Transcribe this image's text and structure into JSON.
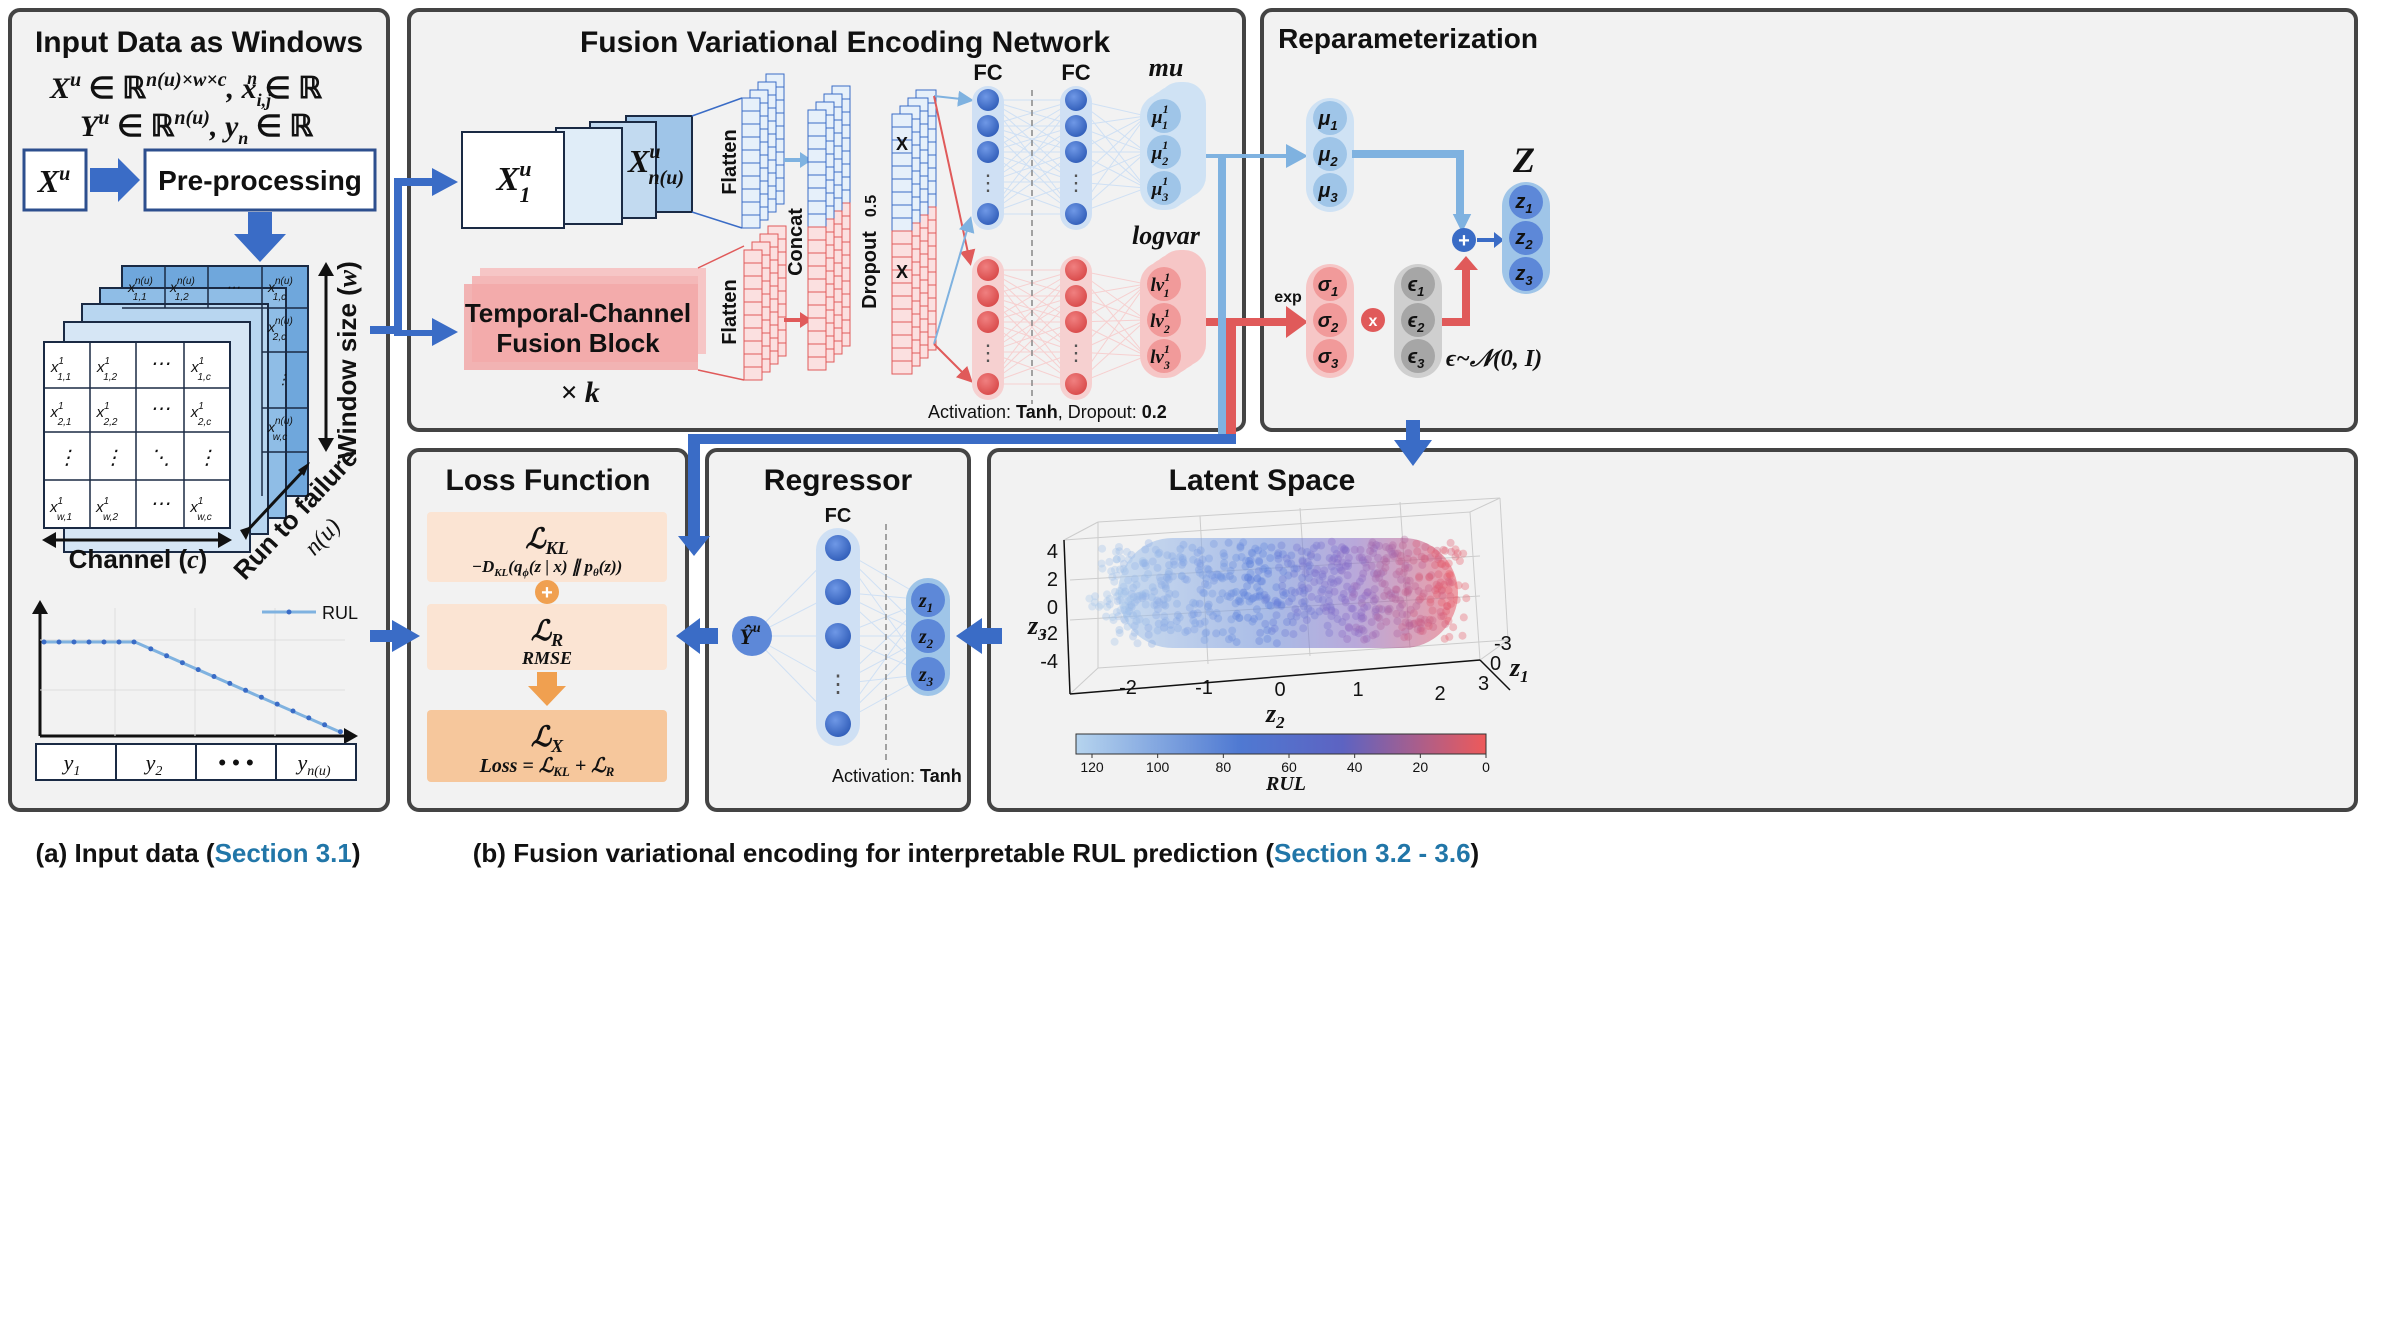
{
  "panels": {
    "input": {
      "title": "Input Data as Windows"
    },
    "fven": {
      "title": "Fusion Variational Encoding Network"
    },
    "reparam": {
      "title": "Reparameterization"
    },
    "loss": {
      "title": "Loss Function"
    },
    "regressor": {
      "title": "Regressor"
    },
    "latent": {
      "title": "Latent Space"
    }
  },
  "input": {
    "formula1_a": "X",
    "formula1_b": "u",
    "formula1_c": " ∈ ℝ",
    "formula1_d": "n(u)×w×c",
    "formula1_e": ", x",
    "formula1_f": "i,j",
    "formula1_g": "n",
    "formula1_h": " ∈ ℝ",
    "formula2_a": "Y",
    "formula2_b": "u",
    "formula2_c": " ∈ ℝ",
    "formula2_d": "n(u)",
    "formula2_e": ", y",
    "formula2_f": "n",
    "formula2_g": " ∈ ℝ",
    "xu_base": "X",
    "xu_sup": "u",
    "preprocessing": "Pre-processing",
    "window_size_label": "Window size (",
    "window_size_var": "w",
    "window_size_close": ")",
    "channel_label": "Channel (",
    "channel_var": "c",
    "channel_close": ")",
    "run_to_failure": "Run to failure",
    "run_to_failure_var": "n(u)",
    "ellipsis_h": "⋯",
    "ellipsis_v": "⋮",
    "ellipsis_d": "⋱",
    "front_cells": [
      [
        "x",
        "1,1",
        "1",
        "x",
        "1,2",
        "1",
        "⋯",
        "x",
        "1,c",
        "1"
      ]
    ],
    "rul_legend": "RUL",
    "y_labels": [
      "y",
      "1",
      "y",
      "2",
      "• • •",
      "y",
      "n(u)"
    ]
  },
  "fven": {
    "x1_base": "X",
    "x1_sup": "u",
    "x1_sub": "1",
    "xn_base": "X",
    "xn_sup": "u",
    "xn_sub": "n(u)",
    "tcfb_line1": "Temporal-Channel",
    "tcfb_line2": "Fusion Block",
    "times_k": "× k",
    "flatten": "Flatten",
    "concat": "Concat",
    "dropout": "Dropout",
    "dropout_val": "0.5",
    "drop_mark": "X",
    "fc": "FC",
    "mu": "mu",
    "logvar": "logvar",
    "activation_prefix": "Activation: ",
    "activation_fn": "Tanh",
    "dropout_prefix": ", Dropout: ",
    "dropout_rate": "0.2",
    "mu_nodes": [
      "μ",
      "1",
      "1",
      "μ",
      "2",
      "1",
      "μ",
      "3",
      "1"
    ],
    "lv_nodes": [
      "lv",
      "1",
      "1",
      "lv",
      "2",
      "1",
      "lv",
      "3",
      "1"
    ],
    "dots": "⋮"
  },
  "reparam": {
    "mu1": "μ",
    "mu_subs": [
      "1",
      "2",
      "3"
    ],
    "sigma": "σ",
    "eps": "ϵ",
    "exp": "exp",
    "times": "x",
    "plus": "+",
    "Z": "Z",
    "z": "z",
    "z_subs": [
      "1",
      "2",
      "3"
    ],
    "noise": "ϵ~𝒩(0, I)"
  },
  "loss": {
    "kl_title": "ℒ",
    "kl_sub": "KL",
    "kl_expr": "−D",
    "kl_expr_sub": "KL",
    "kl_expr_rest": "(q",
    "kl_phi": "ϕ",
    "kl_mid": "(z | x) ∥ p",
    "kl_theta": "θ",
    "kl_end": "(z))",
    "plus": "+",
    "r_title": "ℒ",
    "r_sub": "R",
    "r_expr": "RMSE",
    "x_title": "ℒ",
    "x_sub": "X",
    "x_expr": "Loss = ℒ",
    "x_expr_sub1": "KL",
    "x_expr_mid": " + ℒ",
    "x_expr_sub2": "R"
  },
  "regressor": {
    "fc": "FC",
    "yhat": "Ŷ",
    "yhat_sup": "u",
    "activation_prefix": "Activation: ",
    "activation_fn": "Tanh",
    "z": "z",
    "z_subs": [
      "1",
      "2",
      "3"
    ]
  },
  "latent": {
    "zaxis_label": "z",
    "zaxis_sub": "3",
    "z_ticks": [
      "4",
      "2",
      "0",
      "-2",
      "-4"
    ],
    "x_ticks": [
      "-2",
      "-1",
      "0",
      "1",
      "2"
    ],
    "xaxis_label": "z",
    "xaxis_sub": "2",
    "y_ticks": [
      "-3",
      "0",
      "3"
    ],
    "yaxis_label": "z",
    "yaxis_sub": "1",
    "colorbar_ticks": [
      "120",
      "100",
      "80",
      "60",
      "40",
      "20",
      "0"
    ],
    "colorbar_label": "RUL"
  },
  "captions": {
    "a_prefix": "(a) Input data (",
    "a_link": "Section 3.1",
    "a_suffix": ")",
    "b_prefix": "(b) Fusion variational encoding for interpretable RUL prediction (",
    "b_link": "Section 3.2 - 3.6",
    "b_suffix": ")"
  },
  "colors": {
    "panel_bg": "#f2f2f2",
    "panel_border": "#444444",
    "blue_dark": "#3a6cc6",
    "blue_light": "#9fc5e8",
    "red": "#e05a5a",
    "orange": "#f0a050",
    "link": "#2176a8"
  },
  "chart_data": {
    "type": "scatter",
    "xlabel": "z2",
    "ylabel": "z1",
    "zlabel": "z3",
    "xlim": [
      -2.5,
      2.5
    ],
    "ylim": [
      -3,
      3
    ],
    "zlim": [
      -4,
      4
    ],
    "colorbar": {
      "label": "RUL",
      "range": [
        120,
        0
      ],
      "colors": [
        "#9fc5e8",
        "#4a6fd0",
        "#e05a5a"
      ]
    },
    "trend": "points shift from blue (high RUL) at negative z2 to red (low RUL) at positive z2",
    "rul_curve": {
      "label": "RUL",
      "shape": "piecewise-linear: constant then decreasing to 0"
    }
  }
}
